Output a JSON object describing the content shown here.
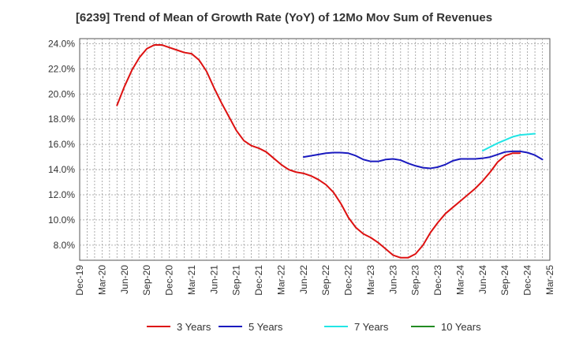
{
  "chart_data": {
    "type": "line",
    "title": "[6239]  Trend of Mean of Growth Rate (YoY) of 12Mo Mov Sum of Revenues",
    "xlabel": "",
    "ylabel": "",
    "ylim": [
      6.8,
      24.4
    ],
    "y_ticks": [
      8,
      10,
      12,
      14,
      16,
      18,
      20,
      22,
      24
    ],
    "y_tick_labels": [
      "8.0%",
      "10.0%",
      "12.0%",
      "14.0%",
      "16.0%",
      "18.0%",
      "20.0%",
      "22.0%",
      "24.0%"
    ],
    "x_start": "Dec-19",
    "x_tick_labels": [
      "Dec-19",
      "Mar-20",
      "Jun-20",
      "Sep-20",
      "Dec-20",
      "Mar-21",
      "Jun-21",
      "Sep-21",
      "Dec-21",
      "Mar-22",
      "Jun-22",
      "Sep-22",
      "Dec-22",
      "Mar-23",
      "Jun-23",
      "Sep-23",
      "Dec-23",
      "Mar-24",
      "Jun-24",
      "Sep-24",
      "Dec-24",
      "Mar-25"
    ],
    "grid": true,
    "legend_position": "bottom",
    "series": [
      {
        "name": "3 Years",
        "color": "#dd1111",
        "start_month_index": 5,
        "values": [
          19.1,
          20.6,
          21.9,
          22.9,
          23.6,
          23.9,
          23.9,
          23.7,
          23.5,
          23.3,
          23.2,
          22.7,
          21.8,
          20.5,
          19.3,
          18.2,
          17.1,
          16.3,
          15.9,
          15.7,
          15.4,
          14.9,
          14.4,
          14.0,
          13.8,
          13.7,
          13.5,
          13.2,
          12.8,
          12.2,
          11.3,
          10.2,
          9.4,
          8.9,
          8.6,
          8.2,
          7.7,
          7.2,
          7.0,
          7.0,
          7.3,
          8.0,
          9.0,
          9.8,
          10.5,
          11.0,
          11.5,
          12.0,
          12.5,
          13.1,
          13.8,
          14.6,
          15.1,
          15.3,
          15.3
        ]
      },
      {
        "name": "5 Years",
        "color": "#1a1abf",
        "start_month_index": 30,
        "values": [
          15.0,
          15.1,
          15.2,
          15.3,
          15.35,
          15.35,
          15.3,
          15.1,
          14.8,
          14.65,
          14.65,
          14.8,
          14.85,
          14.75,
          14.5,
          14.3,
          14.15,
          14.1,
          14.2,
          14.4,
          14.7,
          14.85,
          14.85,
          14.85,
          14.9,
          15.0,
          15.2,
          15.4,
          15.45,
          15.45,
          15.35,
          15.15,
          14.8
        ]
      },
      {
        "name": "7 Years",
        "color": "#22e5e5",
        "start_month_index": 54,
        "values": [
          15.5,
          15.8,
          16.1,
          16.35,
          16.6,
          16.75,
          16.8,
          16.85
        ]
      },
      {
        "name": "10 Years",
        "color": "#228b22",
        "start_month_index": 0,
        "values": []
      }
    ]
  }
}
